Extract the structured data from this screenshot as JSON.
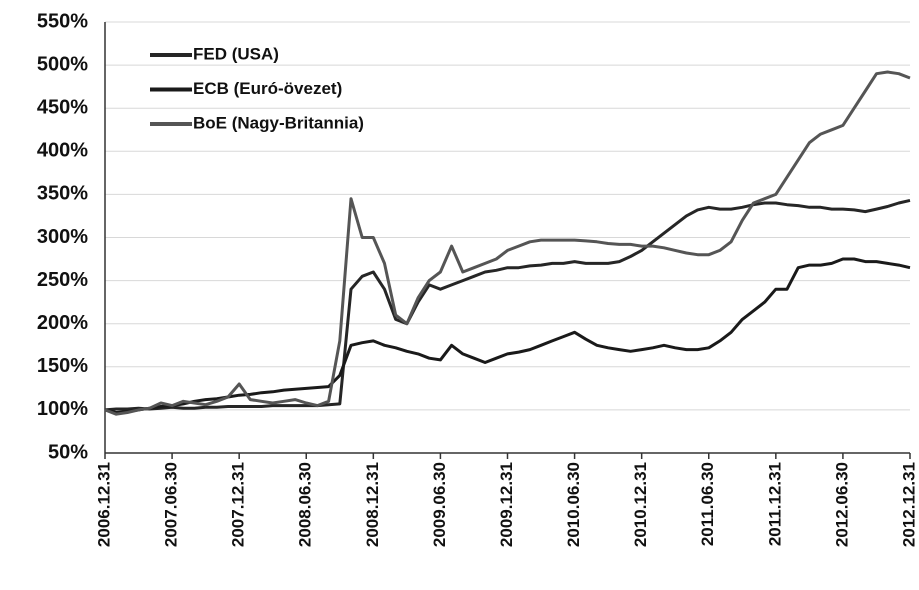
{
  "chart_data": {
    "type": "line",
    "categories": [
      "2006.12.31",
      null,
      null,
      null,
      null,
      null,
      "2007.06.30",
      null,
      null,
      null,
      null,
      null,
      "2007.12.31",
      null,
      null,
      null,
      null,
      null,
      "2008.06.30",
      null,
      null,
      null,
      null,
      null,
      "2008.12.31",
      null,
      null,
      null,
      null,
      null,
      "2009.06.30",
      null,
      null,
      null,
      null,
      null,
      "2009.12.31",
      null,
      null,
      null,
      null,
      null,
      "2010.06.30",
      null,
      null,
      null,
      null,
      null,
      "2010.12.31",
      null,
      null,
      null,
      null,
      null,
      "2011.06.30",
      null,
      null,
      null,
      null,
      null,
      "2011.12.31",
      null,
      null,
      null,
      null,
      null,
      "2012.06.30",
      null,
      null,
      null,
      null,
      null,
      "2012.12.31"
    ],
    "series": [
      {
        "name": "FED (USA)",
        "color": "#262626",
        "values": [
          100,
          101,
          101,
          102,
          101,
          102,
          103,
          102,
          102,
          103,
          103,
          104,
          104,
          104,
          104,
          105,
          105,
          105,
          105,
          105,
          106,
          107,
          240,
          255,
          260,
          240,
          205,
          200,
          225,
          245,
          240,
          245,
          250,
          255,
          260,
          262,
          265,
          265,
          267,
          268,
          270,
          270,
          272,
          270,
          270,
          270,
          272,
          278,
          285,
          295,
          305,
          315,
          325,
          332,
          335,
          333,
          333,
          335,
          338,
          340,
          340,
          338,
          337,
          335,
          335,
          333,
          333,
          332,
          330,
          333,
          336,
          340,
          343
        ]
      },
      {
        "name": "ECB (Euró-övezet)",
        "color": "#1a1a1a",
        "values": [
          100,
          97,
          98,
          100,
          102,
          104,
          105,
          107,
          110,
          112,
          113,
          115,
          117,
          118,
          120,
          121,
          123,
          124,
          125,
          126,
          127,
          140,
          175,
          178,
          180,
          175,
          172,
          168,
          165,
          160,
          158,
          175,
          165,
          160,
          155,
          160,
          165,
          167,
          170,
          175,
          180,
          185,
          190,
          182,
          175,
          172,
          170,
          168,
          170,
          172,
          175,
          172,
          170,
          170,
          172,
          180,
          190,
          205,
          215,
          225,
          240,
          240,
          265,
          268,
          268,
          270,
          275,
          275,
          272,
          272,
          270,
          268,
          265
        ]
      },
      {
        "name": "BoE (Nagy-Britannia)",
        "color": "#555555",
        "values": [
          100,
          95,
          97,
          100,
          102,
          108,
          105,
          110,
          108,
          106,
          110,
          115,
          130,
          112,
          110,
          108,
          110,
          112,
          108,
          105,
          110,
          180,
          345,
          300,
          300,
          270,
          210,
          200,
          230,
          250,
          260,
          290,
          260,
          265,
          270,
          275,
          285,
          290,
          295,
          297,
          297,
          297,
          297,
          296,
          295,
          293,
          292,
          292,
          290,
          290,
          288,
          285,
          282,
          280,
          280,
          285,
          295,
          320,
          340,
          345,
          350,
          370,
          390,
          410,
          420,
          425,
          430,
          450,
          470,
          490,
          492,
          490,
          485
        ]
      }
    ],
    "ylim": [
      50,
      550
    ],
    "yticks": [
      {
        "value": 50,
        "label": "50%"
      },
      {
        "value": 100,
        "label": "100%"
      },
      {
        "value": 150,
        "label": "150%"
      },
      {
        "value": 200,
        "label": "200%"
      },
      {
        "value": 250,
        "label": "250%"
      },
      {
        "value": 300,
        "label": "300%"
      },
      {
        "value": 350,
        "label": "350%"
      },
      {
        "value": 400,
        "label": "400%"
      },
      {
        "value": 450,
        "label": "450%"
      },
      {
        "value": 500,
        "label": "500%"
      },
      {
        "value": 550,
        "label": "550%"
      }
    ],
    "grid": true,
    "legend": "upper left"
  }
}
